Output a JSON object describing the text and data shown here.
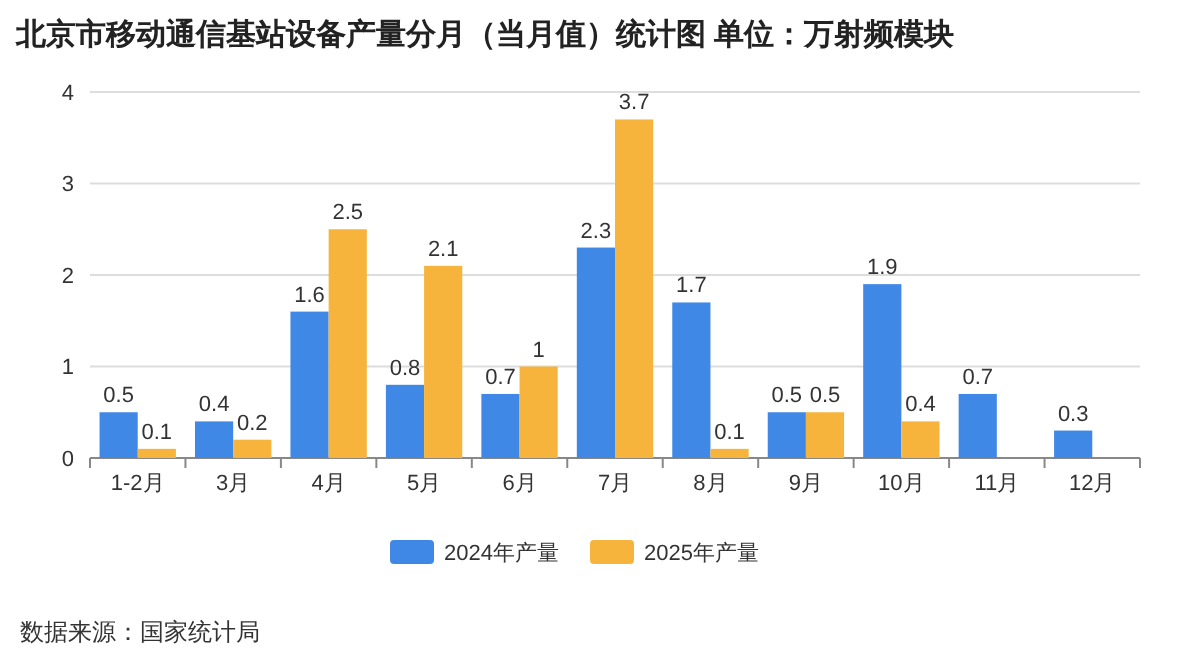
{
  "chart_data": {
    "type": "bar",
    "title": "北京市移动通信基站设备产量分月（当月值）统计图 单位：万射频模块",
    "categories": [
      "1-2月",
      "3月",
      "4月",
      "5月",
      "6月",
      "7月",
      "8月",
      "9月",
      "10月",
      "11月",
      "12月"
    ],
    "series": [
      {
        "name": "2024年产量",
        "color": "#3f88e6",
        "values": [
          0.5,
          0.4,
          1.6,
          0.8,
          0.7,
          2.3,
          1.7,
          0.5,
          1.9,
          0.7,
          0.3
        ]
      },
      {
        "name": "2025年产量",
        "color": "#f7b43c",
        "values": [
          0.1,
          0.2,
          2.5,
          2.1,
          1,
          3.7,
          0.1,
          0.5,
          0.4,
          null,
          null
        ]
      }
    ],
    "ylim": [
      0,
      4
    ],
    "yticks": [
      0,
      1,
      2,
      3,
      4
    ],
    "grid": "y",
    "legend": "bottom",
    "data_labels": true,
    "annotations": [
      "数据来源：国家统计局"
    ]
  }
}
